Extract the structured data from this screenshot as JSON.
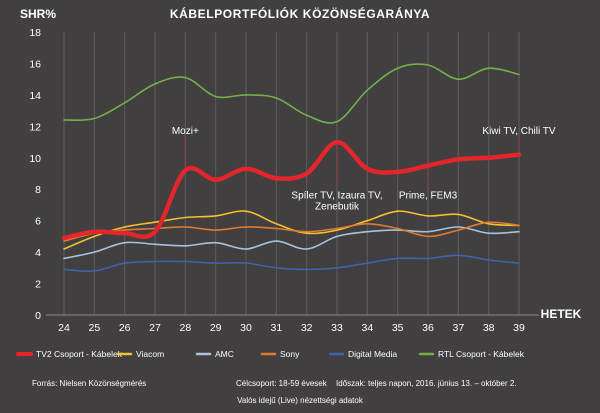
{
  "chart_data": {
    "type": "line",
    "title": "KÁBELPORTFÓLIÓK KÖZÖNSÉGARÁNYA",
    "ylabel": "SHR%",
    "xlabel": "HETEK",
    "ylim": [
      0,
      18
    ],
    "yticks": [
      0,
      2,
      4,
      6,
      8,
      10,
      12,
      14,
      16,
      18
    ],
    "grid": "vertical",
    "legend_position": "bottom",
    "x": [
      24,
      25,
      26,
      27,
      28,
      29,
      30,
      31,
      32,
      33,
      34,
      35,
      36,
      37,
      38,
      39
    ],
    "series": [
      {
        "name": "TV2 Csoport - Kábelek",
        "color": "#e4252b",
        "width": 4.5,
        "values": [
          4.9,
          5.3,
          5.2,
          5.3,
          9.2,
          8.6,
          9.3,
          8.7,
          9.0,
          11.0,
          9.3,
          9.1,
          9.5,
          9.9,
          10.0,
          10.2
        ]
      },
      {
        "name": "Viacom",
        "color": "#f2c230",
        "width": 1.6,
        "values": [
          4.2,
          5.0,
          5.6,
          5.9,
          6.2,
          6.3,
          6.6,
          5.8,
          5.2,
          5.4,
          6.0,
          6.6,
          6.3,
          6.4,
          5.8,
          5.7
        ]
      },
      {
        "name": "AMC",
        "color": "#a7c3dc",
        "width": 1.6,
        "values": [
          3.6,
          4.0,
          4.6,
          4.5,
          4.4,
          4.6,
          4.2,
          4.7,
          4.2,
          5.0,
          5.3,
          5.4,
          5.3,
          5.6,
          5.2,
          5.3
        ]
      },
      {
        "name": "Sony",
        "color": "#e07b2e",
        "width": 1.6,
        "values": [
          4.7,
          5.2,
          5.4,
          5.5,
          5.6,
          5.4,
          5.6,
          5.5,
          5.3,
          5.5,
          5.8,
          5.5,
          5.0,
          5.4,
          5.9,
          5.7
        ]
      },
      {
        "name": "Digital Media",
        "color": "#3f63ad",
        "width": 1.6,
        "values": [
          2.9,
          2.8,
          3.3,
          3.4,
          3.4,
          3.3,
          3.3,
          3.0,
          2.9,
          3.0,
          3.3,
          3.6,
          3.6,
          3.8,
          3.5,
          3.3
        ]
      },
      {
        "name": "RTL Csoport - Kábelek",
        "color": "#75b04a",
        "width": 1.6,
        "values": [
          12.4,
          12.5,
          13.5,
          14.7,
          15.1,
          13.9,
          14.0,
          13.8,
          12.7,
          12.3,
          14.3,
          15.7,
          15.9,
          15.0,
          15.7,
          15.3
        ]
      }
    ],
    "annotations": [
      {
        "text": "Mozi+",
        "x": 28,
        "y": 9.2,
        "label_y": 11.5,
        "side": "above"
      },
      {
        "text": "Spíler TV, Izaura TV,",
        "x": 33,
        "y": 11.0,
        "label_y": 7.4,
        "side": "below"
      },
      {
        "text": "Zenebutik",
        "x": 33,
        "y": null,
        "label_y": 6.7,
        "side": "below"
      },
      {
        "text": "Prime, FEM3",
        "x": 36,
        "y": 9.5,
        "label_y": 7.4,
        "side": "below"
      },
      {
        "text": "Kiwi TV, Chili TV",
        "x": 39,
        "y": 10.2,
        "label_y": 11.5,
        "side": "above"
      }
    ],
    "footnotes": [
      "Forrás: Nielsen Közönségmérés",
      "Célcsoport: 18-59 évesek",
      "Időszak: teljes napon, 2016. június 13. – október 2.",
      "Valós idejű (Live) nézettségi adatok"
    ]
  }
}
